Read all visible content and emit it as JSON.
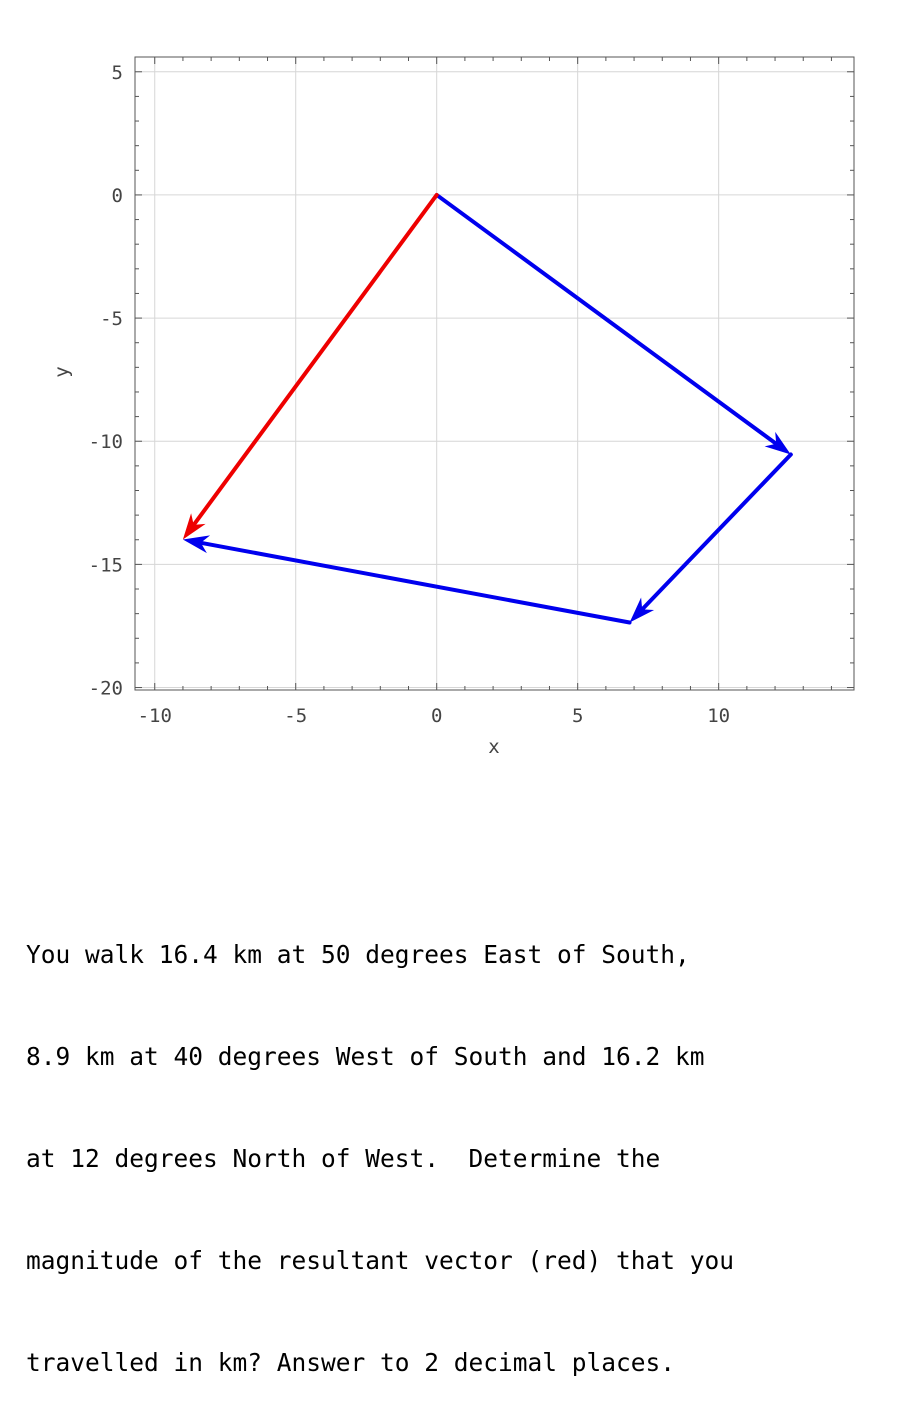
{
  "chart_data": {
    "type": "vector",
    "xlabel": "x",
    "ylabel": "y",
    "xlim": [
      -10.7,
      14.8
    ],
    "ylim": [
      -20.1,
      5.6
    ],
    "xticks": [
      -10,
      -5,
      0,
      5,
      10
    ],
    "yticks": [
      5,
      0,
      -5,
      -10,
      -15,
      -20
    ],
    "grid": true,
    "vectors": [
      {
        "name": "",
        "color": "#0000ee",
        "from": [
          0,
          0
        ],
        "to": [
          12.56,
          -10.54
        ]
      },
      {
        "name": "",
        "color": "#0000ee",
        "from": [
          12.56,
          -10.54
        ],
        "to": [
          6.84,
          -17.36
        ]
      },
      {
        "name": "",
        "color": "#0000ee",
        "from": [
          6.84,
          -17.36
        ],
        "to": [
          -9.0,
          -13.99
        ]
      },
      {
        "name": "",
        "color": "#ee0000",
        "from": [
          0,
          0
        ],
        "to": [
          -9.0,
          -13.99
        ]
      }
    ]
  },
  "question": {
    "lines": [
      "You walk 16.4 km at 50 degrees East of South,",
      "8.9 km at 40 degrees West of South and 16.2 km",
      "at 12 degrees North of West.  Determine the",
      "magnitude of the resultant vector (red) that you",
      "travelled in km? Answer to 2 decimal places."
    ]
  }
}
